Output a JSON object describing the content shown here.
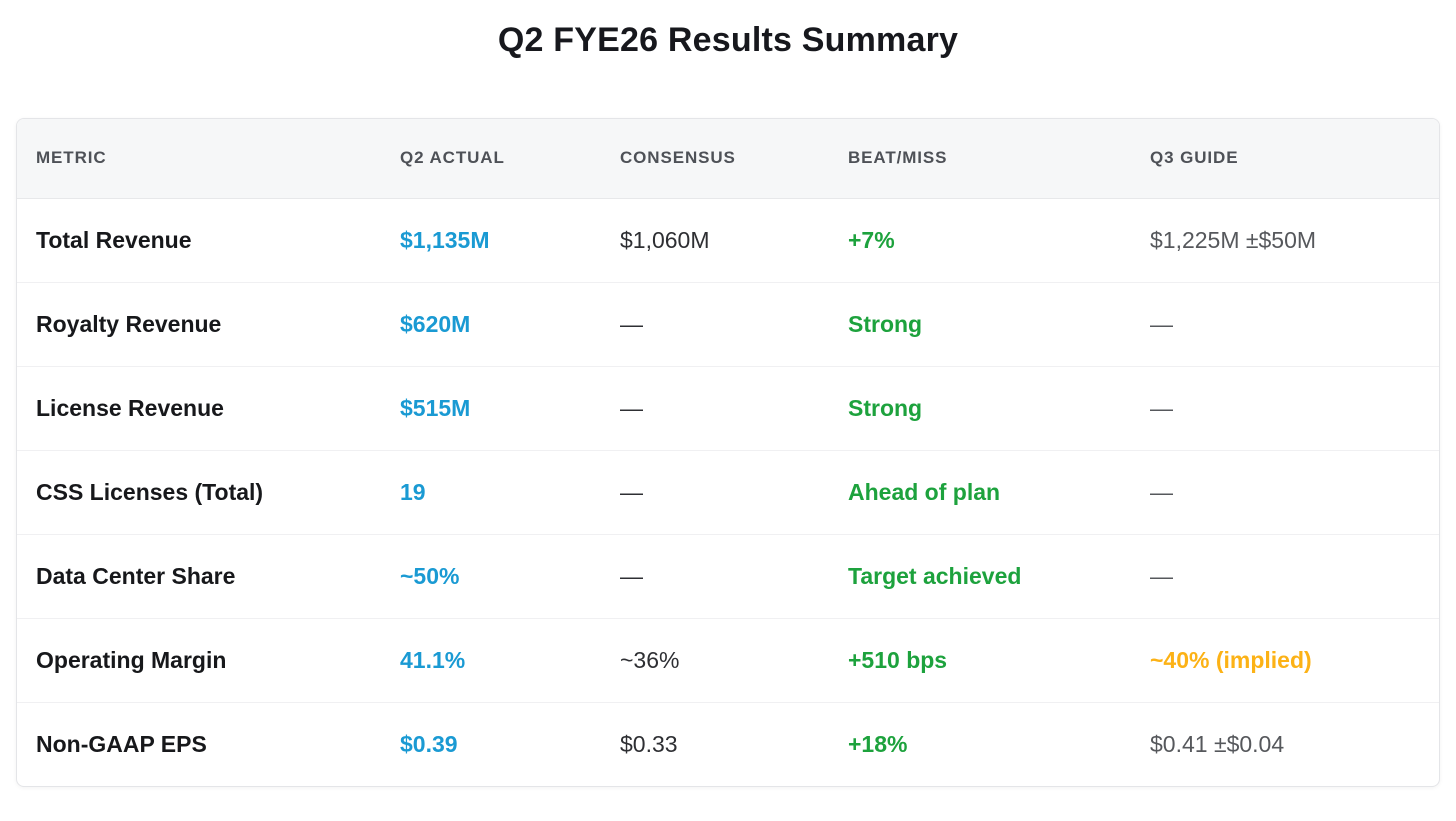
{
  "title": "Q2 FYE26 Results Summary",
  "colors": {
    "accent_blue": "#1a9ad3",
    "positive_green": "#1da23d",
    "warning_amber": "#fcb216",
    "header_background": "#f6f7f8",
    "border": "#e4e5e8"
  },
  "chart_data": {
    "type": "table",
    "title": "Q2 FYE26 Results Summary",
    "columns": [
      "METRIC",
      "Q2 ACTUAL",
      "CONSENSUS",
      "BEAT/MISS",
      "Q3 GUIDE"
    ],
    "rows": [
      {
        "metric": "Total Revenue",
        "q2_actual": "$1,135M",
        "consensus": "$1,060M",
        "beat_miss": "+7%",
        "q3_guide": "$1,225M ±$50M"
      },
      {
        "metric": "Royalty Revenue",
        "q2_actual": "$620M",
        "consensus": "—",
        "beat_miss": "Strong",
        "q3_guide": "—"
      },
      {
        "metric": "License Revenue",
        "q2_actual": "$515M",
        "consensus": "—",
        "beat_miss": "Strong",
        "q3_guide": "—"
      },
      {
        "metric": "CSS Licenses (Total)",
        "q2_actual": "19",
        "consensus": "—",
        "beat_miss": "Ahead of plan",
        "q3_guide": "—"
      },
      {
        "metric": "Data Center Share",
        "q2_actual": "~50%",
        "consensus": "—",
        "beat_miss": "Target achieved",
        "q3_guide": "—"
      },
      {
        "metric": "Operating Margin",
        "q2_actual": "41.1%",
        "consensus": "~36%",
        "beat_miss": "+510 bps",
        "q3_guide": "~40% (implied)"
      },
      {
        "metric": "Non-GAAP EPS",
        "q2_actual": "$0.39",
        "consensus": "$0.33",
        "beat_miss": "+18%",
        "q3_guide": "$0.41 ±$0.04"
      }
    ],
    "header_labels": {
      "metric": "METRIC",
      "q2_actual": "Q2 ACTUAL",
      "consensus": "CONSENSUS",
      "beat_miss": "BEAT/MISS",
      "q3_guide": "Q3 GUIDE"
    }
  }
}
